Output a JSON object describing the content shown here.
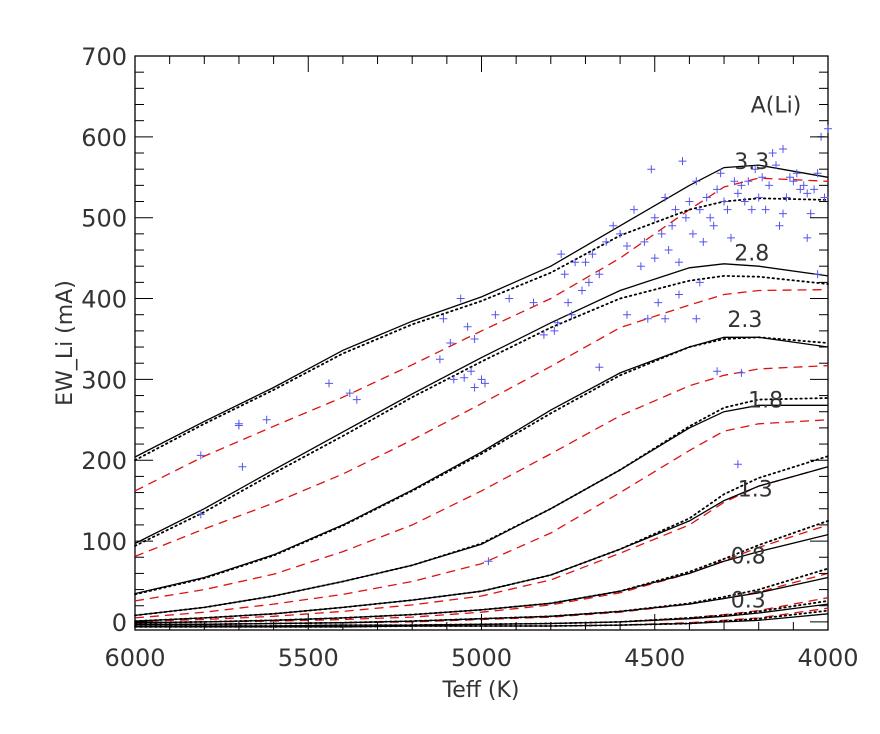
{
  "chart_data": {
    "type": "line",
    "title": "",
    "xlabel": "Teff (K)",
    "ylabel": "EW_Li (mA)",
    "xlim": [
      6000,
      4000
    ],
    "ylim": [
      -10,
      700
    ],
    "x_reversed": true,
    "x_ticks": [
      6000,
      5500,
      5000,
      4500,
      4000
    ],
    "x_tick_labels": [
      "6000",
      "5500",
      "5000",
      "4500",
      "4000"
    ],
    "y_ticks": [
      0,
      100,
      200,
      300,
      400,
      500,
      600,
      700
    ],
    "y_tick_labels": [
      "0",
      "100",
      "200",
      "300",
      "400",
      "500",
      "600",
      "700"
    ],
    "legend_title": "A(Li)",
    "grid": false,
    "colors": {
      "solid": "#000000",
      "dotted": "#000000",
      "dashed": "#dd1111",
      "points": "#5555ee",
      "frame": "#000000"
    },
    "x": [
      6000,
      5800,
      5600,
      5400,
      5200,
      5000,
      4800,
      4600,
      4400,
      4300,
      4200,
      4000
    ],
    "curve_groups": [
      {
        "label": "3.3",
        "solid": [
          204,
          248,
          290,
          336,
          372,
          402,
          440,
          490,
          540,
          562,
          565,
          550
        ],
        "dotted": [
          200,
          245,
          287,
          332,
          368,
          397,
          432,
          478,
          510,
          520,
          524,
          522
        ],
        "dashed": [
          162,
          205,
          242,
          278,
          318,
          360,
          400,
          450,
          510,
          538,
          549,
          545
        ]
      },
      {
        "label": "2.8",
        "solid": [
          97,
          140,
          188,
          235,
          282,
          327,
          370,
          410,
          438,
          443,
          440,
          428
        ],
        "dotted": [
          94,
          136,
          184,
          230,
          278,
          322,
          364,
          400,
          422,
          428,
          427,
          418
        ],
        "dashed": [
          81,
          115,
          147,
          183,
          225,
          270,
          316,
          364,
          392,
          405,
          410,
          411
        ]
      },
      {
        "label": "2.3",
        "solid": [
          35,
          55,
          83,
          120,
          163,
          210,
          262,
          308,
          340,
          352,
          352,
          340
        ],
        "dotted": [
          34,
          54,
          82,
          119,
          162,
          208,
          258,
          305,
          340,
          350,
          352,
          345
        ],
        "dashed": [
          26,
          40,
          59,
          87,
          120,
          162,
          208,
          255,
          292,
          305,
          313,
          317
        ]
      },
      {
        "label": "1.8",
        "solid": [
          8,
          18,
          32,
          50,
          70,
          96,
          140,
          188,
          240,
          260,
          268,
          268
        ],
        "dotted": [
          8,
          18,
          32,
          50,
          70,
          97,
          140,
          188,
          242,
          265,
          275,
          277
        ],
        "dashed": [
          5,
          12,
          22,
          34,
          50,
          72,
          110,
          160,
          212,
          236,
          245,
          250
        ]
      },
      {
        "label": "1.3",
        "solid": [
          1,
          5,
          10,
          18,
          27,
          38,
          58,
          90,
          125,
          150,
          168,
          192
        ],
        "dotted": [
          1,
          5,
          10,
          18,
          27,
          38,
          58,
          90,
          128,
          158,
          178,
          205
        ],
        "dashed": [
          1,
          3,
          7,
          13,
          21,
          32,
          52,
          85,
          120,
          148,
          168,
          192
        ]
      },
      {
        "label": "0.8",
        "solid": [
          -1,
          0,
          2,
          5,
          9,
          15,
          23,
          38,
          60,
          75,
          87,
          108
        ],
        "dotted": [
          -1,
          0,
          2,
          5,
          9,
          15,
          23,
          38,
          62,
          78,
          95,
          125
        ],
        "dashed": [
          -1,
          0,
          1,
          3,
          6,
          12,
          21,
          36,
          60,
          76,
          92,
          120
        ]
      },
      {
        "label": "0.3",
        "solid": [
          -3,
          -3,
          -2,
          -1,
          1,
          4,
          7,
          13,
          22,
          29,
          36,
          55
        ],
        "dotted": [
          -3,
          -3,
          -2,
          -1,
          1,
          4,
          7,
          13,
          23,
          31,
          40,
          66
        ],
        "dashed": [
          -3,
          -3,
          -2,
          -1,
          0,
          3,
          6,
          12,
          22,
          29,
          37,
          60
        ]
      },
      {
        "label": "",
        "solid": [
          -5,
          -5,
          -5,
          -4,
          -4,
          -3,
          -2,
          0,
          4,
          7,
          11,
          22
        ],
        "dotted": [
          -5,
          -5,
          -5,
          -4,
          -4,
          -3,
          -2,
          0,
          5,
          8,
          13,
          26
        ],
        "dashed": [
          -5,
          -5,
          -5,
          -4,
          -4,
          -3,
          -2,
          0,
          5,
          9,
          14,
          30
        ]
      },
      {
        "label": "",
        "solid": [
          -6,
          -6,
          -6,
          -6,
          -5,
          -5,
          -5,
          -4,
          -2,
          0,
          2,
          10
        ],
        "dotted": [
          -6,
          -6,
          -6,
          -6,
          -5,
          -5,
          -5,
          -4,
          -2,
          1,
          4,
          14
        ],
        "dashed": [
          -6,
          -6,
          -6,
          -6,
          -5,
          -5,
          -5,
          -4,
          -1,
          2,
          5,
          17
        ]
      }
    ],
    "label_positions": [
      {
        "label": "3.3",
        "teff": 4220,
        "ew": 560
      },
      {
        "label": "2.8",
        "teff": 4220,
        "ew": 447
      },
      {
        "label": "2.3",
        "teff": 4240,
        "ew": 365
      },
      {
        "label": "1.8",
        "teff": 4180,
        "ew": 265
      },
      {
        "label": "1.3",
        "teff": 4210,
        "ew": 155
      },
      {
        "label": "0.8",
        "teff": 4230,
        "ew": 72
      },
      {
        "label": "0.3",
        "teff": 4230,
        "ew": 18
      }
    ],
    "legend_position": {
      "teff": 4150,
      "ew": 630
    },
    "scatter": {
      "teff": [
        5810,
        5700,
        5690,
        5620,
        5440,
        5380,
        5360,
        5120,
        5110,
        5080,
        5090,
        5060,
        5050,
        5040,
        5030,
        5020,
        5000,
        4990,
        4980,
        4960,
        4920,
        4850,
        4820,
        4790,
        4770,
        4760,
        4750,
        4740,
        4730,
        4710,
        4700,
        4690,
        4680,
        4660,
        4640,
        4620,
        4600,
        4580,
        4560,
        4540,
        4530,
        4520,
        4510,
        4500,
        4490,
        4480,
        4470,
        4460,
        4450,
        4440,
        4430,
        4420,
        4410,
        4400,
        4390,
        4380,
        4370,
        4360,
        4350,
        4340,
        4330,
        4320,
        4310,
        4300,
        4290,
        4280,
        4270,
        4260,
        4250,
        4240,
        4230,
        4220,
        4210,
        4200,
        4190,
        4180,
        4170,
        4160,
        4150,
        4140,
        4130,
        4120,
        4110,
        4100,
        4090,
        4080,
        4070,
        4060,
        4050,
        4040,
        4030,
        4020,
        4010,
        4000,
        4780,
        4660,
        4580,
        4470,
        4380,
        4320,
        4260,
        4130,
        4060,
        4030,
        5810,
        5700,
        5020,
        4500,
        4430,
        4250,
        4370
      ],
      "ew": [
        206,
        243,
        192,
        250,
        295,
        283,
        275,
        325,
        375,
        300,
        345,
        400,
        302,
        365,
        310,
        350,
        300,
        295,
        75,
        380,
        400,
        395,
        355,
        360,
        455,
        430,
        395,
        380,
        445,
        410,
        445,
        420,
        455,
        430,
        470,
        490,
        480,
        465,
        510,
        440,
        470,
        375,
        560,
        500,
        395,
        480,
        525,
        460,
        490,
        510,
        445,
        570,
        500,
        520,
        480,
        545,
        510,
        470,
        525,
        500,
        490,
        535,
        555,
        520,
        510,
        475,
        545,
        530,
        540,
        520,
        545,
        510,
        560,
        525,
        550,
        510,
        540,
        580,
        565,
        490,
        505,
        525,
        550,
        545,
        555,
        535,
        540,
        530,
        505,
        535,
        555,
        600,
        525,
        610,
        370,
        315,
        380,
        375,
        375,
        310,
        195,
        585,
        475,
        430,
        133,
        245,
        290,
        450,
        405,
        308,
        420
      ]
    }
  }
}
